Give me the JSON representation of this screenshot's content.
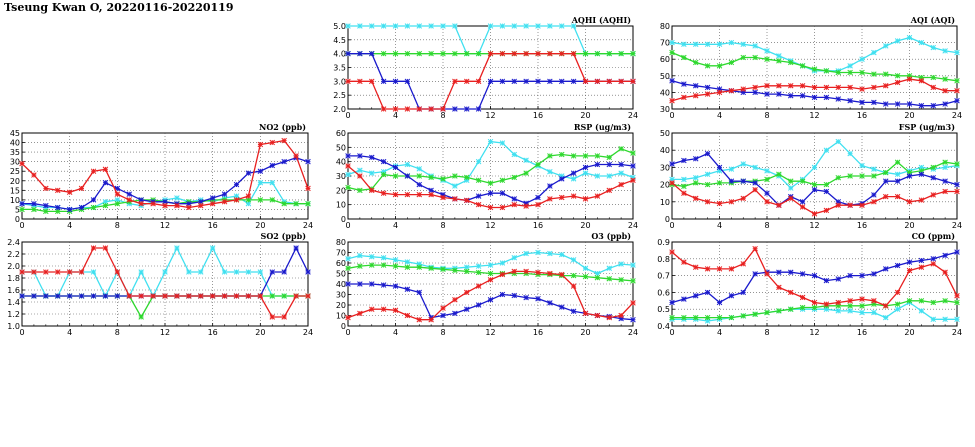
{
  "page_title": "Tseung Kwan O, 20220116-20220119",
  "series_colors": {
    "cyan": "#40e0f0",
    "green": "#2ed82e",
    "blue": "#1a1acc",
    "red": "#e82020"
  },
  "chart_data": [
    {
      "id": "aqhi",
      "type": "line",
      "title": "AQHI (AQHI)",
      "ylim": [
        2.0,
        5.0
      ],
      "yticks": [
        "2.0",
        "2.5",
        "3.0",
        "3.5",
        "4.0",
        "4.5",
        "5.0"
      ],
      "xlim": [
        0,
        24
      ],
      "xticks": [
        "0",
        "4",
        "8",
        "12",
        "16",
        "20",
        "24"
      ],
      "grid": true,
      "series": [
        {
          "color": "cyan",
          "values": [
            5,
            5,
            5,
            5,
            5,
            5,
            5,
            5,
            5,
            5,
            4,
            4,
            5,
            5,
            5,
            5,
            5,
            5,
            5,
            5,
            4,
            4,
            4,
            4,
            4
          ]
        },
        {
          "color": "green",
          "values": [
            4,
            4,
            4,
            4,
            4,
            4,
            4,
            4,
            4,
            4,
            4,
            4,
            4,
            4,
            4,
            4,
            4,
            4,
            4,
            4,
            4,
            4,
            4,
            4,
            4
          ]
        },
        {
          "color": "blue",
          "values": [
            4,
            4,
            4,
            3,
            3,
            3,
            2,
            2,
            2,
            2,
            2,
            2,
            3,
            3,
            3,
            3,
            3,
            3,
            3,
            3,
            3,
            3,
            3,
            3,
            3
          ]
        },
        {
          "color": "red",
          "values": [
            3,
            3,
            3,
            2,
            2,
            2,
            2,
            2,
            2,
            3,
            3,
            3,
            4,
            4,
            4,
            4,
            4,
            4,
            4,
            4,
            3,
            3,
            3,
            3,
            3
          ]
        }
      ]
    },
    {
      "id": "aqi",
      "type": "line",
      "title": "AQI (AQI)",
      "ylim": [
        30,
        80
      ],
      "yticks": [
        "30",
        "40",
        "50",
        "60",
        "70",
        "80"
      ],
      "xlim": [
        0,
        24
      ],
      "xticks": [
        "0",
        "4",
        "8",
        "12",
        "16",
        "20",
        "24"
      ],
      "grid": true,
      "series": [
        {
          "color": "cyan",
          "values": [
            70,
            69,
            69,
            69,
            69,
            70,
            69,
            68,
            65,
            62,
            59,
            56,
            53,
            53,
            53,
            56,
            60,
            64,
            68,
            71,
            73,
            70,
            67,
            65,
            64
          ]
        },
        {
          "color": "green",
          "values": [
            64,
            61,
            58,
            56,
            56,
            58,
            61,
            61,
            60,
            59,
            58,
            56,
            54,
            53,
            52,
            52,
            52,
            51,
            51,
            50,
            50,
            49,
            49,
            48,
            47
          ]
        },
        {
          "color": "blue",
          "values": [
            47,
            45,
            44,
            43,
            42,
            41,
            40,
            40,
            39,
            39,
            38,
            38,
            37,
            37,
            36,
            35,
            34,
            34,
            33,
            33,
            33,
            32,
            32,
            33,
            35
          ]
        },
        {
          "color": "red",
          "values": [
            35,
            37,
            38,
            39,
            40,
            41,
            42,
            43,
            44,
            44,
            44,
            44,
            43,
            43,
            43,
            43,
            42,
            43,
            44,
            46,
            48,
            47,
            43,
            41,
            41
          ]
        }
      ]
    },
    {
      "id": "no2",
      "type": "line",
      "title": "NO2 (ppb)",
      "ylim": [
        0,
        45
      ],
      "yticks": [
        "0",
        "5",
        "10",
        "15",
        "20",
        "25",
        "30",
        "35",
        "40",
        "45"
      ],
      "xlim": [
        0,
        24
      ],
      "xticks": [
        "0",
        "4",
        "8",
        "12",
        "16",
        "20",
        "24"
      ],
      "grid": true,
      "series": [
        {
          "color": "cyan",
          "values": [
            8,
            7,
            6,
            6,
            5,
            6,
            6,
            9,
            10,
            8,
            7,
            9,
            10,
            11,
            9,
            10,
            9,
            11,
            12,
            8,
            19,
            19,
            9,
            8,
            8
          ]
        },
        {
          "color": "green",
          "values": [
            5,
            5,
            4,
            4,
            4,
            5,
            6,
            7,
            8,
            9,
            10,
            10,
            9,
            8,
            9,
            9,
            10,
            10,
            10,
            10,
            10,
            10,
            8,
            8,
            8
          ]
        },
        {
          "color": "blue",
          "values": [
            8,
            8,
            7,
            6,
            5,
            6,
            10,
            19,
            16,
            13,
            10,
            9,
            9,
            8,
            8,
            9,
            11,
            13,
            18,
            24,
            25,
            28,
            30,
            32,
            30
          ]
        },
        {
          "color": "red",
          "values": [
            29,
            23,
            16,
            15,
            14,
            16,
            25,
            26,
            13,
            10,
            8,
            8,
            7,
            7,
            6,
            7,
            8,
            9,
            10,
            12,
            39,
            40,
            41,
            33,
            16
          ]
        }
      ]
    },
    {
      "id": "rsp",
      "type": "line",
      "title": "RSP (ug/m3)",
      "ylim": [
        0,
        60
      ],
      "yticks": [
        "0",
        "10",
        "20",
        "30",
        "40",
        "50",
        "60"
      ],
      "xlim": [
        0,
        24
      ],
      "xticks": [
        "0",
        "4",
        "8",
        "12",
        "16",
        "20",
        "24"
      ],
      "grid": true,
      "series": [
        {
          "color": "cyan",
          "values": [
            31,
            34,
            32,
            33,
            37,
            38,
            35,
            30,
            27,
            23,
            27,
            40,
            54,
            53,
            45,
            41,
            37,
            33,
            30,
            28,
            32,
            30,
            30,
            32,
            29
          ]
        },
        {
          "color": "green",
          "values": [
            22,
            20,
            21,
            31,
            30,
            30,
            30,
            29,
            28,
            30,
            29,
            27,
            25,
            27,
            29,
            32,
            38,
            44,
            45,
            44,
            44,
            44,
            43,
            49,
            46
          ]
        },
        {
          "color": "blue",
          "values": [
            44,
            44,
            43,
            40,
            36,
            30,
            24,
            20,
            17,
            14,
            13,
            16,
            18,
            18,
            14,
            11,
            15,
            23,
            28,
            32,
            36,
            38,
            38,
            38,
            37
          ]
        },
        {
          "color": "red",
          "values": [
            37,
            30,
            20,
            18,
            17,
            17,
            17,
            17,
            15,
            14,
            13,
            10,
            8,
            8,
            10,
            9,
            10,
            14,
            15,
            16,
            14,
            16,
            20,
            24,
            27
          ]
        }
      ]
    },
    {
      "id": "fsp",
      "type": "line",
      "title": "FSP (ug/m3)",
      "ylim": [
        0,
        50
      ],
      "yticks": [
        "0",
        "10",
        "20",
        "30",
        "40",
        "50"
      ],
      "xlim": [
        0,
        24
      ],
      "xticks": [
        "0",
        "4",
        "8",
        "12",
        "16",
        "20",
        "24"
      ],
      "grid": true,
      "series": [
        {
          "color": "cyan",
          "values": [
            23,
            23,
            24,
            26,
            28,
            29,
            32,
            30,
            28,
            25,
            18,
            23,
            30,
            40,
            45,
            38,
            31,
            29,
            27,
            26,
            28,
            30,
            29,
            30,
            31
          ]
        },
        {
          "color": "green",
          "values": [
            20,
            19,
            21,
            20,
            21,
            21,
            22,
            22,
            23,
            26,
            22,
            22,
            20,
            20,
            24,
            25,
            25,
            25,
            27,
            33,
            27,
            28,
            30,
            33,
            32
          ]
        },
        {
          "color": "blue",
          "values": [
            32,
            34,
            35,
            38,
            30,
            22,
            22,
            21,
            15,
            8,
            13,
            10,
            17,
            16,
            10,
            8,
            9,
            14,
            22,
            22,
            25,
            26,
            24,
            22,
            20
          ]
        },
        {
          "color": "red",
          "values": [
            21,
            15,
            12,
            10,
            9,
            10,
            12,
            17,
            10,
            8,
            12,
            7,
            3,
            5,
            8,
            8,
            8,
            10,
            13,
            13,
            10,
            11,
            14,
            16,
            16
          ]
        }
      ]
    },
    {
      "id": "so2",
      "type": "line",
      "title": "SO2 (ppb)",
      "ylim": [
        1.0,
        2.4
      ],
      "yticks": [
        "1.0",
        "1.2",
        "1.4",
        "1.6",
        "1.8",
        "2.0",
        "2.2",
        "2.4"
      ],
      "xlim": [
        0,
        24
      ],
      "xticks": [
        "0",
        "4",
        "8",
        "12",
        "16",
        "20",
        "24"
      ],
      "grid": true,
      "series": [
        {
          "color": "cyan",
          "values": [
            1.9,
            1.9,
            1.5,
            1.5,
            1.9,
            1.9,
            1.9,
            1.5,
            1.9,
            1.5,
            1.9,
            1.5,
            1.9,
            2.3,
            1.9,
            1.9,
            2.3,
            1.9,
            1.9,
            1.9,
            1.9,
            1.5,
            1.5,
            1.5,
            1.5
          ]
        },
        {
          "color": "green",
          "values": [
            1.5,
            1.5,
            1.5,
            1.5,
            1.5,
            1.5,
            1.5,
            1.5,
            1.5,
            1.5,
            1.15,
            1.5,
            1.5,
            1.5,
            1.5,
            1.5,
            1.5,
            1.5,
            1.5,
            1.5,
            1.5,
            1.5,
            1.5,
            1.5,
            1.5
          ]
        },
        {
          "color": "blue",
          "values": [
            1.5,
            1.5,
            1.5,
            1.5,
            1.5,
            1.5,
            1.5,
            1.5,
            1.5,
            1.5,
            1.5,
            1.5,
            1.5,
            1.5,
            1.5,
            1.5,
            1.5,
            1.5,
            1.5,
            1.5,
            1.5,
            1.9,
            1.9,
            2.3,
            1.9
          ]
        },
        {
          "color": "red",
          "values": [
            1.9,
            1.9,
            1.9,
            1.9,
            1.9,
            1.9,
            2.3,
            2.3,
            1.9,
            1.5,
            1.5,
            1.5,
            1.5,
            1.5,
            1.5,
            1.5,
            1.5,
            1.5,
            1.5,
            1.5,
            1.5,
            1.15,
            1.15,
            1.5,
            1.5
          ]
        }
      ]
    },
    {
      "id": "o3",
      "type": "line",
      "title": "O3 (ppb)",
      "ylim": [
        0,
        80
      ],
      "yticks": [
        "0",
        "10",
        "20",
        "30",
        "40",
        "50",
        "60",
        "70",
        "80"
      ],
      "xlim": [
        0,
        24
      ],
      "xticks": [
        "0",
        "4",
        "8",
        "12",
        "16",
        "20",
        "24"
      ],
      "grid": true,
      "series": [
        {
          "color": "cyan",
          "values": [
            64,
            67,
            66,
            65,
            63,
            61,
            59,
            56,
            55,
            55,
            56,
            57,
            58,
            60,
            65,
            69,
            70,
            69,
            68,
            63,
            55,
            50,
            55,
            59,
            58
          ]
        },
        {
          "color": "green",
          "values": [
            55,
            57,
            58,
            58,
            57,
            56,
            56,
            55,
            54,
            53,
            52,
            51,
            50,
            50,
            50,
            50,
            49,
            49,
            48,
            48,
            47,
            46,
            45,
            44,
            43
          ]
        },
        {
          "color": "blue",
          "values": [
            40,
            40,
            40,
            39,
            38,
            35,
            32,
            8,
            10,
            12,
            16,
            20,
            25,
            30,
            29,
            27,
            26,
            22,
            18,
            14,
            12,
            10,
            9,
            7,
            6
          ]
        },
        {
          "color": "red",
          "values": [
            8,
            12,
            16,
            16,
            15,
            10,
            6,
            6,
            17,
            25,
            32,
            38,
            44,
            49,
            52,
            52,
            51,
            50,
            49,
            38,
            12,
            10,
            8,
            10,
            22
          ]
        }
      ]
    },
    {
      "id": "co",
      "type": "line",
      "title": "CO (ppm)",
      "ylim": [
        0.4,
        0.9
      ],
      "yticks": [
        "0.4",
        "0.5",
        "0.6",
        "0.7",
        "0.8",
        "0.9"
      ],
      "xlim": [
        0,
        24
      ],
      "xticks": [
        "0",
        "4",
        "8",
        "12",
        "16",
        "20",
        "24"
      ],
      "grid": true,
      "series": [
        {
          "color": "cyan",
          "values": [
            0.44,
            0.44,
            0.44,
            0.43,
            0.44,
            0.45,
            0.46,
            0.47,
            0.48,
            0.49,
            0.5,
            0.5,
            0.5,
            0.5,
            0.49,
            0.49,
            0.48,
            0.48,
            0.45,
            0.5,
            0.54,
            0.49,
            0.44,
            0.44,
            0.44
          ]
        },
        {
          "color": "green",
          "values": [
            0.45,
            0.45,
            0.45,
            0.45,
            0.45,
            0.45,
            0.46,
            0.47,
            0.48,
            0.49,
            0.5,
            0.51,
            0.51,
            0.52,
            0.52,
            0.52,
            0.52,
            0.53,
            0.52,
            0.53,
            0.55,
            0.55,
            0.54,
            0.55,
            0.54
          ]
        },
        {
          "color": "blue",
          "values": [
            0.54,
            0.56,
            0.58,
            0.6,
            0.54,
            0.58,
            0.6,
            0.71,
            0.72,
            0.72,
            0.72,
            0.71,
            0.7,
            0.67,
            0.68,
            0.7,
            0.7,
            0.71,
            0.74,
            0.76,
            0.78,
            0.79,
            0.8,
            0.82,
            0.84
          ]
        },
        {
          "color": "red",
          "values": [
            0.84,
            0.78,
            0.75,
            0.74,
            0.74,
            0.74,
            0.77,
            0.86,
            0.71,
            0.63,
            0.6,
            0.57,
            0.54,
            0.53,
            0.54,
            0.55,
            0.56,
            0.55,
            0.52,
            0.6,
            0.73,
            0.75,
            0.77,
            0.72,
            0.58
          ]
        }
      ]
    }
  ]
}
